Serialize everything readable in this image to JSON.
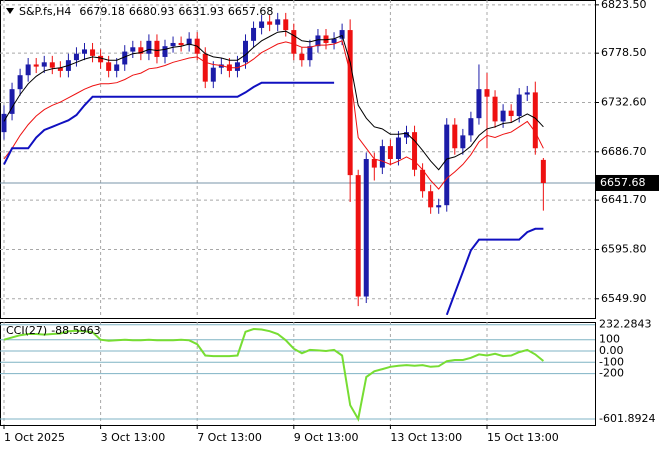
{
  "chart_data": {
    "type": "candlestick",
    "title": "S&P.fs,H4",
    "categories": [
      "1 Oct 2025",
      null,
      null,
      null,
      null,
      null,
      null,
      null,
      null,
      null,
      null,
      null,
      "3 Oct 13:00",
      null,
      null,
      null,
      null,
      null,
      null,
      null,
      null,
      null,
      null,
      null,
      "7 Oct 13:00",
      null,
      null,
      null,
      null,
      null,
      null,
      null,
      null,
      null,
      null,
      null,
      "9 Oct 13:00",
      null,
      null,
      null,
      null,
      null,
      null,
      null,
      null,
      null,
      null,
      null,
      "13 Oct 13:00",
      null,
      null,
      null,
      null,
      null,
      null,
      null,
      null,
      null,
      null,
      null,
      "15 Oct 13:00",
      null,
      null,
      null,
      null,
      null,
      null,
      null
    ],
    "open": [
      6705,
      6722,
      6745,
      6758,
      6768,
      6766,
      6770,
      6765,
      6762,
      6772,
      6778,
      6782,
      6776,
      6770,
      6762,
      6768,
      6780,
      6784,
      6778,
      6790,
      6775,
      6785,
      6788,
      6786,
      6792,
      6778,
      6752,
      6765,
      6768,
      6762,
      6770,
      6790,
      6802,
      6808,
      6805,
      6810,
      6800,
      6778,
      6772,
      6785,
      6795,
      6788,
      6792,
      6800,
      6665,
      6552,
      6680,
      6672,
      6692,
      6680,
      6700,
      6705,
      6670,
      6650,
      6635,
      6637,
      6712,
      6690,
      6702,
      6718,
      6745,
      6738,
      6715,
      6725,
      6720,
      6740,
      6742,
      6679.18
    ],
    "high": [
      6730,
      6751,
      6764,
      6774,
      6774,
      6776,
      6776,
      6771,
      6778,
      6784,
      6788,
      6788,
      6782,
      6776,
      6774,
      6786,
      6790,
      6790,
      6796,
      6796,
      6791,
      6794,
      6794,
      6798,
      6798,
      6784,
      6771,
      6774,
      6774,
      6776,
      6796,
      6808,
      6814,
      6814,
      6816,
      6816,
      6806,
      6784,
      6791,
      6801,
      6801,
      6798,
      6806,
      6810,
      6670,
      6686,
      6686,
      6698,
      6698,
      6706,
      6711,
      6711,
      6676,
      6656,
      6643,
      6718,
      6718,
      6708,
      6724,
      6768,
      6760,
      6744,
      6731,
      6731,
      6746,
      6748,
      6752,
      6680.93
    ],
    "low": [
      6698,
      6716,
      6739,
      6752,
      6760,
      6760,
      6759,
      6756,
      6756,
      6766,
      6772,
      6770,
      6764,
      6756,
      6756,
      6762,
      6774,
      6772,
      6772,
      6769,
      6769,
      6779,
      6780,
      6780,
      6772,
      6746,
      6746,
      6759,
      6756,
      6756,
      6764,
      6784,
      6796,
      6799,
      6799,
      6794,
      6772,
      6766,
      6766,
      6779,
      6782,
      6782,
      6786,
      6640,
      6543,
      6546,
      6660,
      6666,
      6674,
      6674,
      6694,
      6664,
      6644,
      6629,
      6629,
      6631,
      6684,
      6684,
      6696,
      6712,
      6690,
      6709,
      6709,
      6714,
      6714,
      6734,
      6684,
      6631.93
    ],
    "close": [
      6722,
      6745,
      6758,
      6768,
      6766,
      6770,
      6765,
      6762,
      6772,
      6778,
      6782,
      6776,
      6770,
      6762,
      6768,
      6780,
      6784,
      6778,
      6790,
      6775,
      6785,
      6788,
      6786,
      6792,
      6778,
      6752,
      6765,
      6768,
      6762,
      6770,
      6790,
      6802,
      6808,
      6805,
      6810,
      6800,
      6778,
      6772,
      6785,
      6795,
      6788,
      6792,
      6800,
      6665,
      6552,
      6680,
      6672,
      6692,
      6680,
      6700,
      6705,
      6670,
      6650,
      6635,
      6637,
      6712,
      6690,
      6702,
      6718,
      6745,
      6738,
      6715,
      6725,
      6720,
      6740,
      6742,
      6690,
      6657.68
    ],
    "up_color": "#1c1ca8",
    "down_color": "#ee1111",
    "overlays": [
      {
        "color": "#000000",
        "width": 1,
        "values": [
          6715,
          6728,
          6740,
          6750,
          6757,
          6762,
          6764,
          6765,
          6767,
          6770,
          6773,
          6775,
          6774,
          6772,
          6772,
          6775,
          6778,
          6779,
          6782,
          6781,
          6782,
          6784,
          6785,
          6787,
          6785,
          6778,
          6775,
          6774,
          6772,
          6772,
          6777,
          6784,
          6790,
          6794,
          6798,
          6799,
          6795,
          6790,
          6789,
          6791,
          6791,
          6792,
          6795,
          6770,
          6730,
          6718,
          6710,
          6708,
          6703,
          6703,
          6704,
          6697,
          6688,
          6678,
          6670,
          6680,
          6682,
          6686,
          6692,
          6702,
          6708,
          6710,
          6713,
          6714,
          6718,
          6722,
          6718,
          6710
        ]
      },
      {
        "color": "#ee1111",
        "width": 1,
        "values": [
          6680,
          6690,
          6702,
          6712,
          6720,
          6726,
          6730,
          6733,
          6737,
          6741,
          6745,
          6748,
          6750,
          6750,
          6751,
          6754,
          6758,
          6760,
          6764,
          6765,
          6767,
          6770,
          6772,
          6774,
          6775,
          6770,
          6768,
          6767,
          6765,
          6765,
          6768,
          6773,
          6779,
          6783,
          6787,
          6789,
          6787,
          6784,
          6784,
          6786,
          6786,
          6787,
          6790,
          6760,
          6700,
          6690,
          6680,
          6678,
          6675,
          6678,
          6682,
          6678,
          6670,
          6660,
          6652,
          6662,
          6668,
          6675,
          6684,
          6696,
          6702,
          6700,
          6703,
          6705,
          6710,
          6715,
          6705,
          6690
        ]
      },
      {
        "color": "#1010c0",
        "width": 2,
        "values": [
          6675,
          6690,
          6690,
          6690,
          6700,
          6707,
          6710,
          6713,
          6716,
          6721,
          6730,
          6738,
          6738,
          6738,
          6738,
          6738,
          6738,
          6738,
          6738,
          6738,
          6738,
          6738,
          6738,
          6738,
          6738,
          6738,
          6738,
          6738,
          6738,
          6738,
          6742,
          6747,
          6751,
          6751,
          6751,
          6751,
          6751,
          6751,
          6751,
          6751,
          6751,
          6751,
          null,
          null,
          null,
          null,
          null,
          null,
          null,
          null,
          null,
          null,
          null,
          null,
          null,
          6535,
          6555,
          6575,
          6595,
          6605,
          6605,
          6605,
          6605,
          6605,
          6605,
          6612,
          6615,
          6615
        ]
      }
    ],
    "ylim": [
      6532,
      6828
    ],
    "yticks": [
      {
        "value": 6823.5,
        "label": "6823.50"
      },
      {
        "value": 6778.5,
        "label": "6778.50"
      },
      {
        "value": 6732.6,
        "label": "6732.60"
      },
      {
        "value": 6686.7,
        "label": "6686.70"
      },
      {
        "value": 6641.7,
        "label": "6641.70"
      },
      {
        "value": 6595.8,
        "label": "6595.80"
      },
      {
        "value": 6549.9,
        "label": "6549.90"
      }
    ],
    "grid": true,
    "cci": {
      "label": "CCI(27)",
      "color": "#77dd33",
      "ylim": [
        -655,
        256.6
      ],
      "yticks": [
        232.2843,
        100,
        {
          "value": 0,
          "label": "0.00"
        },
        -100,
        -200,
        -601.8924
      ],
      "values": [
        100,
        120,
        140,
        150,
        150,
        145,
        150,
        155,
        175,
        180,
        175,
        165,
        100,
        90,
        95,
        100,
        95,
        95,
        100,
        95,
        95,
        95,
        100,
        95,
        60,
        -40,
        -45,
        -45,
        -45,
        -40,
        170,
        195,
        190,
        175,
        150,
        95,
        20,
        -20,
        10,
        5,
        0,
        10,
        -40,
        -480,
        -601.8924,
        -230,
        -180,
        -160,
        -140,
        -130,
        -125,
        -130,
        -125,
        -140,
        -135,
        -90,
        -80,
        -80,
        -60,
        -30,
        -40,
        -25,
        -45,
        -40,
        -10,
        10,
        -30,
        -88.5963
      ]
    }
  }
}
